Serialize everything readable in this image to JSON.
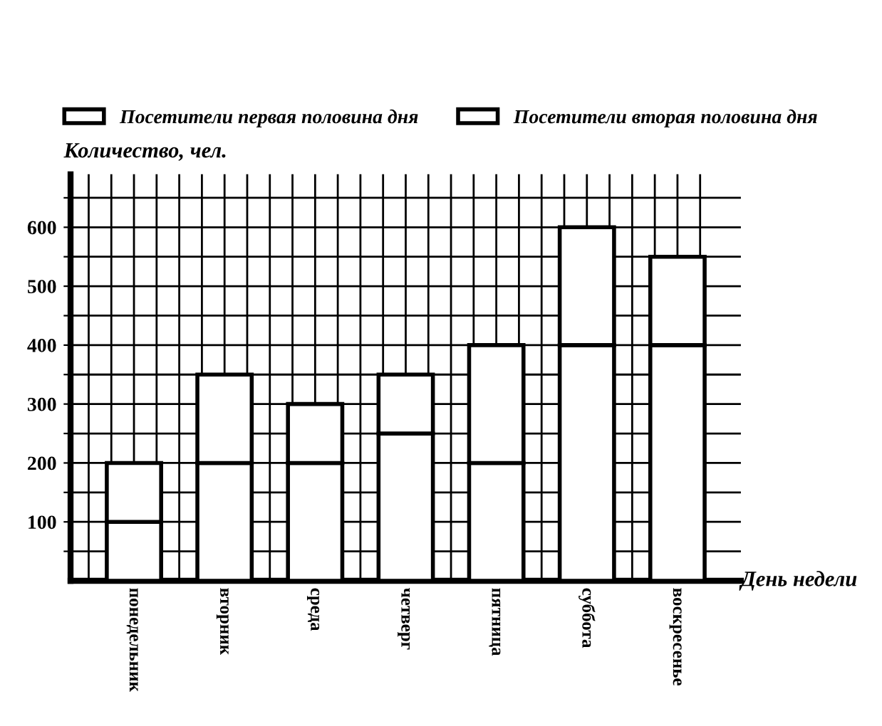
{
  "chart_data": {
    "type": "bar",
    "stacked": true,
    "xlabel": "День недели",
    "ylabel": "Количество, чел.",
    "categories": [
      "понедельник",
      "вторник",
      "среда",
      "четверг",
      "пятница",
      "суббота",
      "воскресенье"
    ],
    "series": [
      {
        "name": "Посетители первая половина дня",
        "color": "#ffffff",
        "values": [
          100,
          200,
          200,
          250,
          200,
          400,
          400
        ]
      },
      {
        "name": "Посетители вторая половина дня",
        "color": "#ffffff",
        "values": [
          100,
          150,
          100,
          100,
          200,
          200,
          150
        ]
      }
    ],
    "ylim": [
      0,
      690
    ],
    "yticks": [
      {
        "value": 50,
        "label": null
      },
      100,
      {
        "value": 150,
        "label": null
      },
      200,
      {
        "value": 250,
        "label": null
      },
      300,
      {
        "value": 350,
        "label": null
      },
      400,
      {
        "value": 450,
        "label": null
      },
      500,
      {
        "value": 550,
        "label": null
      },
      600,
      {
        "value": 650,
        "label": null
      }
    ],
    "grid": true,
    "legend": "top"
  }
}
